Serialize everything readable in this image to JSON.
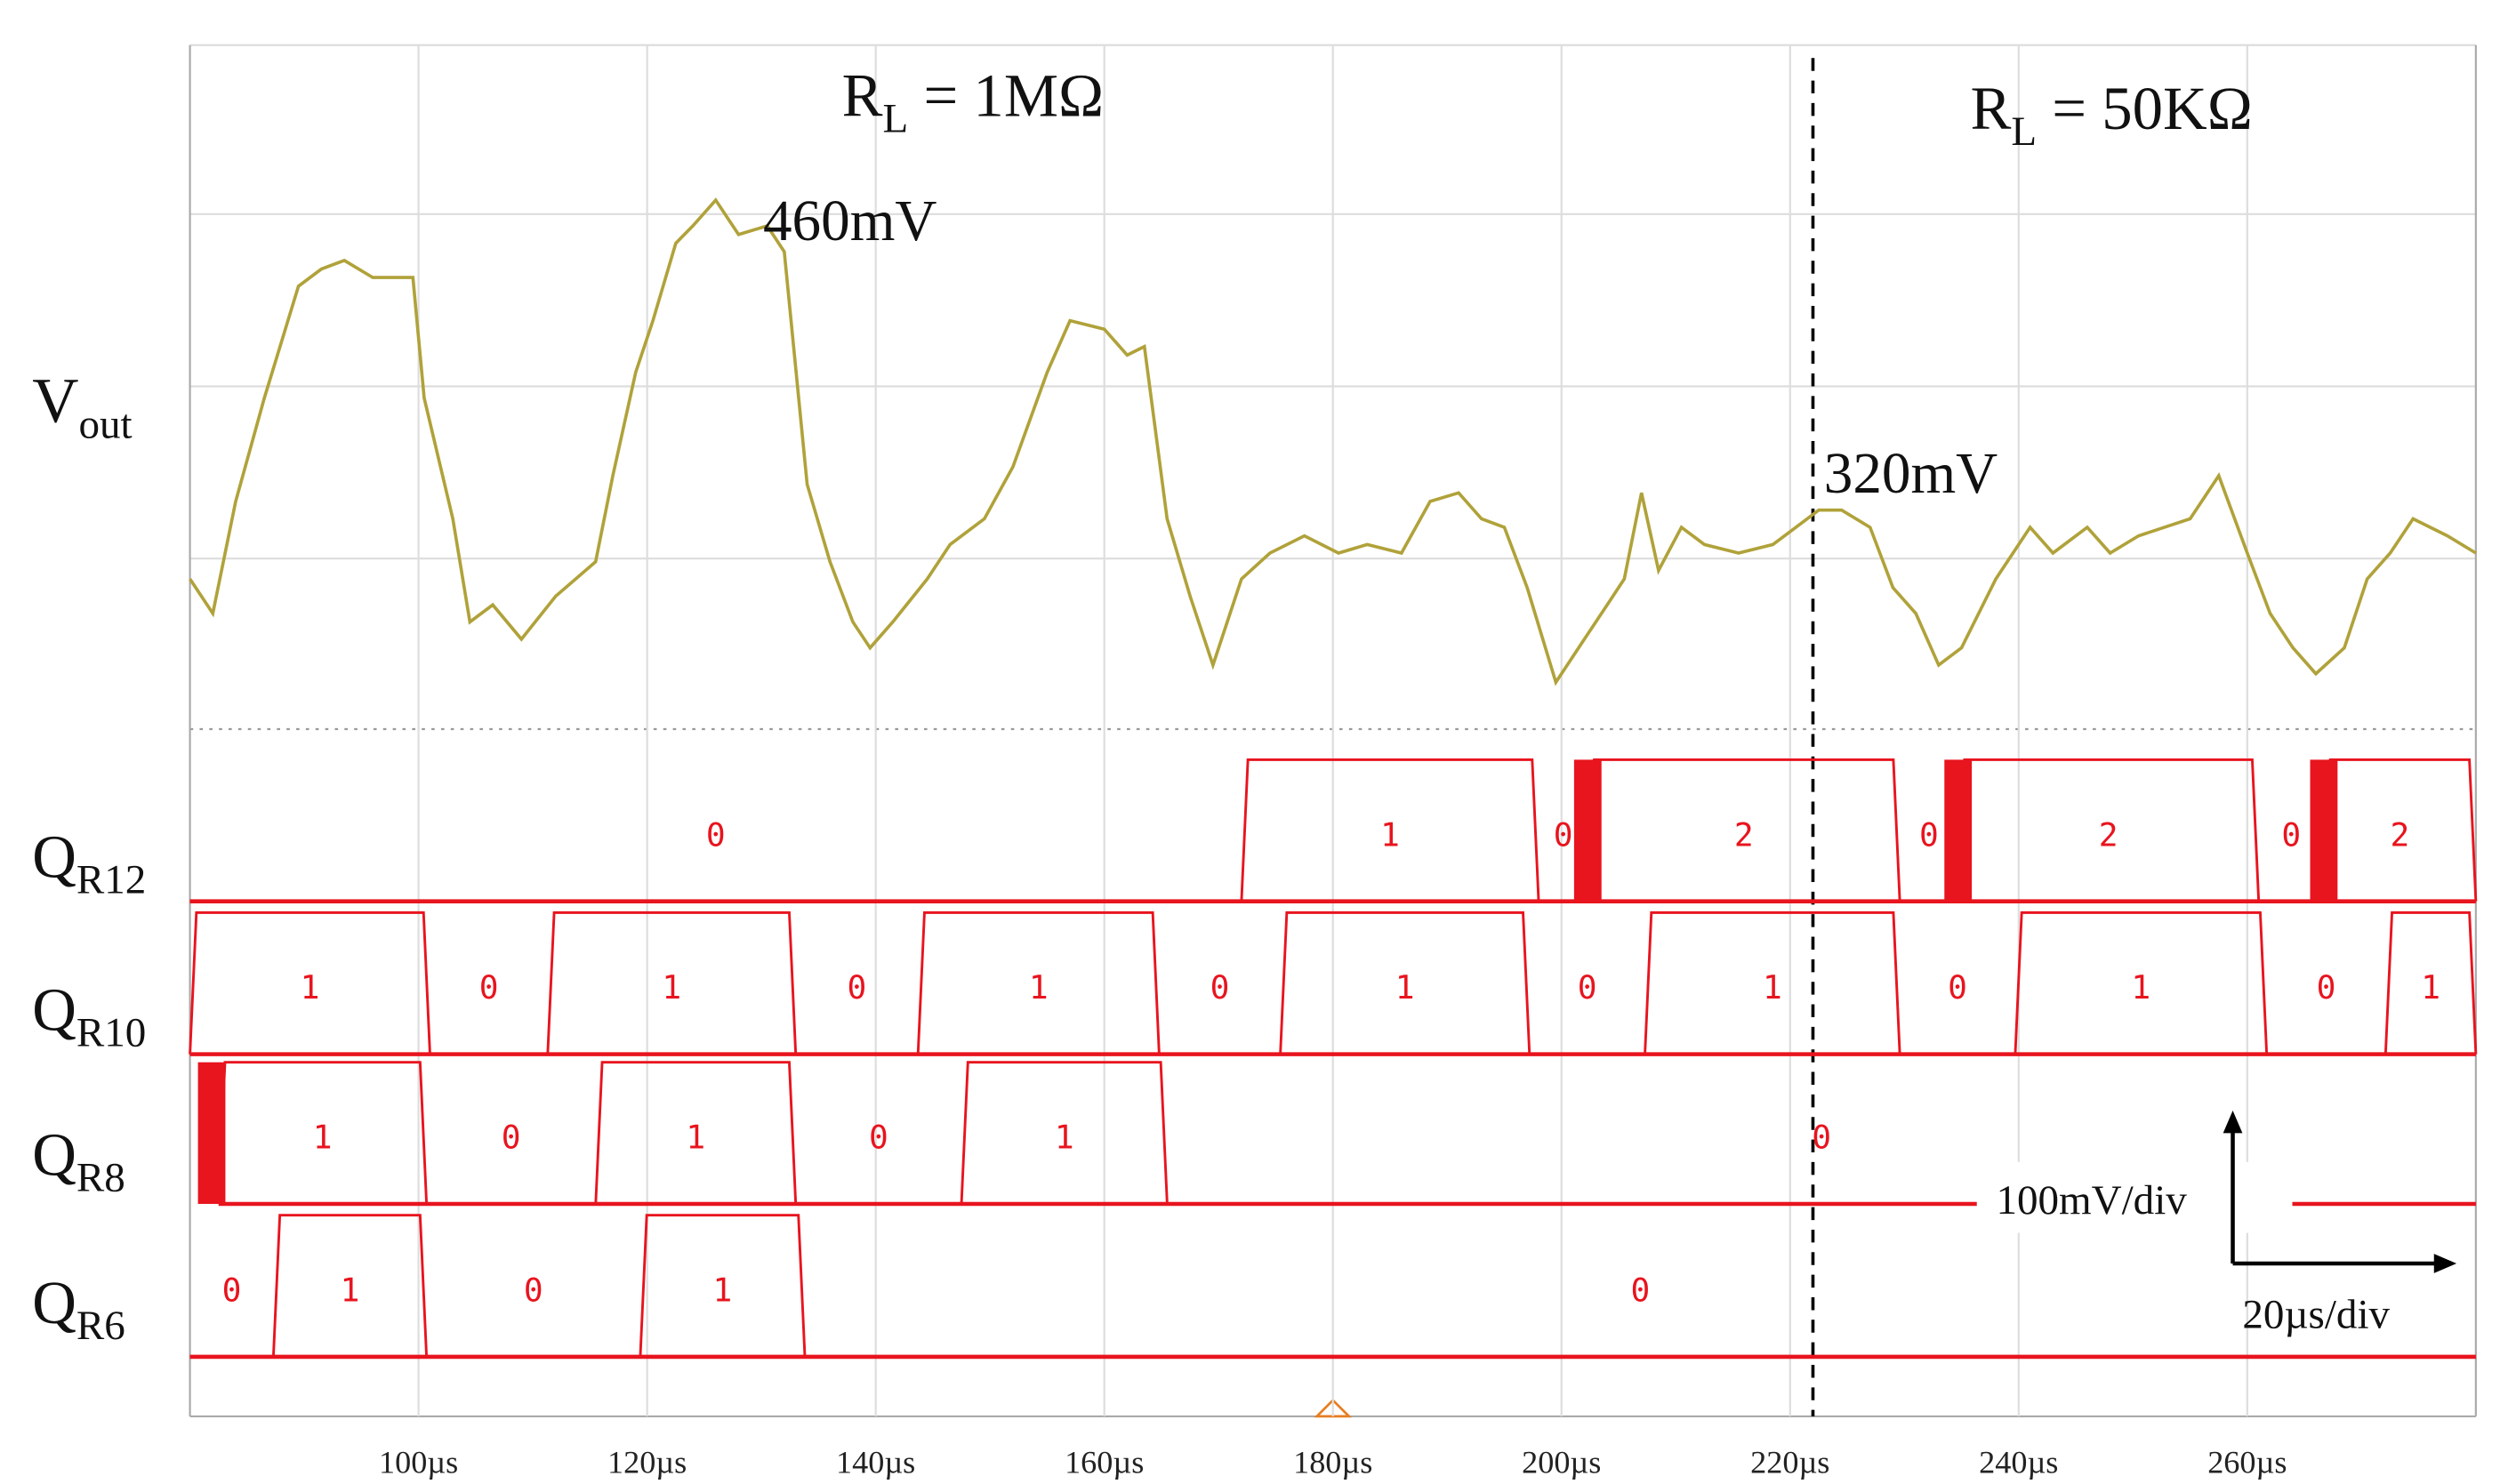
{
  "chart_data": {
    "type": "line",
    "xlim": [
      80,
      280
    ],
    "xticks": [
      {
        "value": 100,
        "label": "100µs"
      },
      {
        "value": 120,
        "label": "120µs"
      },
      {
        "value": 140,
        "label": "140µs"
      },
      {
        "value": 160,
        "label": "160µs"
      },
      {
        "value": 180,
        "label": "180µs"
      },
      {
        "value": 200,
        "label": "200µs"
      },
      {
        "value": 220,
        "label": "220µs"
      },
      {
        "value": 240,
        "label": "240µs"
      },
      {
        "value": 260,
        "label": "260µs"
      }
    ],
    "ylim": [
      150,
      550
    ],
    "grid": true,
    "divider_x": 222,
    "load_labels": [
      {
        "main": "R",
        "sub": "L",
        "rest": " = 1MΩ"
      },
      {
        "main": "R",
        "sub": "L",
        "rest": " = 50KΩ"
      }
    ],
    "annotations": [
      "460mV",
      "320mV"
    ],
    "scale_labels": [
      "100mV/div",
      "20µs/div"
    ],
    "series": [
      {
        "name": "V",
        "name_sub": "out",
        "color": "#b0a23a",
        "x": [
          80,
          82,
          84,
          86.5,
          89.5,
          91.5,
          93.5,
          96,
          98,
          99.5,
          100.5,
          103,
          104.5,
          106.5,
          109,
          112,
          115.5,
          117,
          119,
          120.5,
          122.5,
          124,
          126,
          128,
          130.5,
          132,
          134,
          136,
          138,
          139.5,
          141.5,
          144.5,
          146.5,
          149.5,
          152,
          155,
          157,
          160,
          162,
          163.5,
          165.5,
          167.5,
          169.5,
          172,
          174.5,
          177.5,
          180.5,
          183,
          186,
          188.5,
          191,
          193,
          195,
          197,
          199.5,
          202,
          204,
          205.5,
          207,
          208.5,
          210.5,
          212.5,
          215.5,
          218.5,
          220.5,
          222.5,
          224.5,
          227,
          229,
          231,
          233,
          235,
          238,
          241,
          243,
          246,
          248,
          250.5,
          255,
          257.5,
          260,
          262,
          264,
          266,
          268.5,
          270.5,
          272.5,
          274.5,
          277.5,
          280
        ],
        "values": [
          240,
          220,
          285,
          345,
          410,
          420,
          425,
          415,
          415,
          415,
          345,
          275,
          215,
          225,
          205,
          230,
          250,
          300,
          360,
          390,
          435,
          445,
          460,
          440,
          445,
          430,
          295,
          250,
          215,
          200,
          215,
          240,
          260,
          275,
          305,
          360,
          390,
          385,
          370,
          375,
          275,
          230,
          190,
          240,
          255,
          265,
          255,
          260,
          255,
          285,
          290,
          275,
          270,
          235,
          180,
          205,
          225,
          240,
          290,
          245,
          270,
          260,
          255,
          260,
          270,
          280,
          280,
          270,
          235,
          220,
          190,
          200,
          240,
          270,
          255,
          270,
          255,
          265,
          275,
          300,
          255,
          220,
          200,
          185,
          200,
          240,
          255,
          275,
          265,
          255
        ]
      }
    ],
    "buses": [
      {
        "name": "Q",
        "name_sub": "R12",
        "color": "#e8141e",
        "edges": [
          80,
          172,
          198,
          202.3,
          229.6,
          234.7,
          261,
          266.7,
          280
        ],
        "states": [
          0,
          1,
          0,
          2,
          0,
          2,
          0,
          2
        ],
        "glitches": [
          [
            201.1,
            203.5
          ],
          [
            233.5,
            235.9
          ],
          [
            265.5,
            267.9
          ]
        ]
      },
      {
        "name": "Q",
        "name_sub": "R10",
        "color": "#e8141e",
        "edges": [
          80,
          101,
          111.3,
          133,
          143.7,
          164.8,
          175.4,
          197.2,
          207.3,
          229.6,
          239.7,
          261.7,
          272.1,
          280
        ],
        "states": [
          1,
          0,
          1,
          0,
          1,
          0,
          1,
          0,
          1,
          0,
          1,
          0,
          1
        ],
        "glitches": []
      },
      {
        "name": "Q",
        "name_sub": "R8",
        "color": "#e8141e",
        "edges": [
          82.5,
          100.7,
          115.5,
          133,
          147.5,
          165.5,
          280
        ],
        "states": [
          1,
          0,
          1,
          0,
          1,
          0
        ],
        "glitches": [
          [
            80.7,
            83.1
          ]
        ]
      },
      {
        "name": "Q",
        "name_sub": "R6",
        "color": "#e8141e",
        "edges": [
          80,
          87.3,
          100.7,
          119.4,
          133.8,
          280
        ],
        "states": [
          0,
          1,
          0,
          1,
          0
        ],
        "glitches": []
      }
    ]
  }
}
